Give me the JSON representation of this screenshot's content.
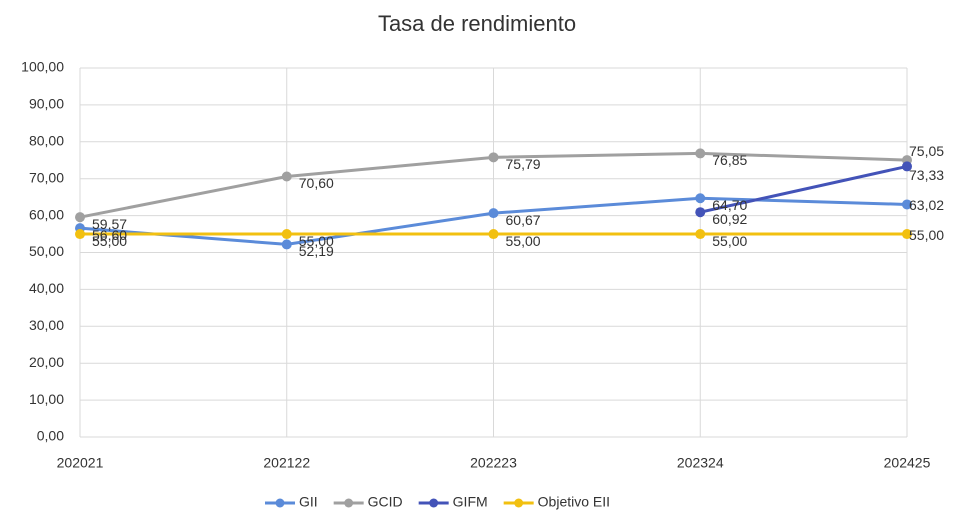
{
  "chart_data": {
    "type": "line",
    "title": "Tasa de rendimiento",
    "categories": [
      "202021",
      "202122",
      "202223",
      "202324",
      "202425"
    ],
    "series": [
      {
        "name": "GII",
        "color": "#5b8bd9",
        "values": [
          56.6,
          52.19,
          60.67,
          64.7,
          63.02
        ],
        "value_labels": [
          "56,60",
          "52,19",
          "60,67",
          "64,70",
          "63,02"
        ]
      },
      {
        "name": "GCID",
        "color": "#a0a0a0",
        "values": [
          59.57,
          70.6,
          75.79,
          76.85,
          75.05
        ],
        "value_labels": [
          "59,57",
          "70,60",
          "75,79",
          "76,85",
          "75,05"
        ]
      },
      {
        "name": "GIFM",
        "color": "#4353b8",
        "values": [
          null,
          null,
          null,
          60.92,
          73.33
        ],
        "value_labels": [
          null,
          null,
          null,
          "60,92",
          "73,33"
        ]
      },
      {
        "name": "Objetivo EII",
        "color": "#f2c010",
        "values": [
          55,
          55,
          55,
          55,
          55
        ],
        "value_labels": [
          "55,00",
          "55,00",
          "55,00",
          "55,00",
          "55,00"
        ]
      }
    ],
    "ylim": [
      0,
      100
    ],
    "yticks": [
      {
        "value": 0,
        "label": "0,00"
      },
      {
        "value": 10,
        "label": "10,00"
      },
      {
        "value": 20,
        "label": "20,00"
      },
      {
        "value": 30,
        "label": "30,00"
      },
      {
        "value": 40,
        "label": "40,00"
      },
      {
        "value": 50,
        "label": "50,00"
      },
      {
        "value": 60,
        "label": "60,00"
      },
      {
        "value": 70,
        "label": "70,00"
      },
      {
        "value": 80,
        "label": "80,00"
      },
      {
        "value": 90,
        "label": "90,00"
      },
      {
        "value": 100,
        "label": "100,00"
      }
    ],
    "grid": true,
    "legend": "bottom"
  }
}
